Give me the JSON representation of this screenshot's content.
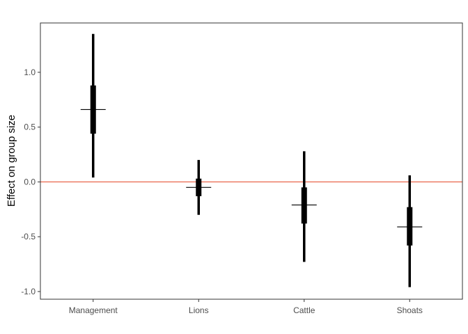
{
  "chart_data": {
    "type": "interval",
    "ylabel": "Effect on group size",
    "xlabel": "",
    "categories": [
      "Management",
      "Lions",
      "Cattle",
      "Shoats"
    ],
    "ylim": [
      -1.07,
      1.45
    ],
    "yticks": [
      -1.0,
      -0.5,
      0.0,
      0.5,
      1.0
    ],
    "ytick_labels": [
      "-1.0",
      "-0.5",
      "0.0",
      "0.5",
      "1.0"
    ],
    "estimates": [
      0.66,
      -0.05,
      -0.21,
      -0.41
    ],
    "inner_interval": [
      [
        0.44,
        0.88
      ],
      [
        -0.13,
        0.03
      ],
      [
        -0.38,
        -0.05
      ],
      [
        -0.58,
        -0.23
      ]
    ],
    "outer_interval": [
      [
        0.04,
        1.35
      ],
      [
        -0.3,
        0.2
      ],
      [
        -0.73,
        0.28
      ],
      [
        -0.96,
        0.06
      ]
    ],
    "reference_line": 0.0,
    "reference_line_color": "#e8583a",
    "mark_color": "#000000",
    "grid": false,
    "legend": "none"
  }
}
